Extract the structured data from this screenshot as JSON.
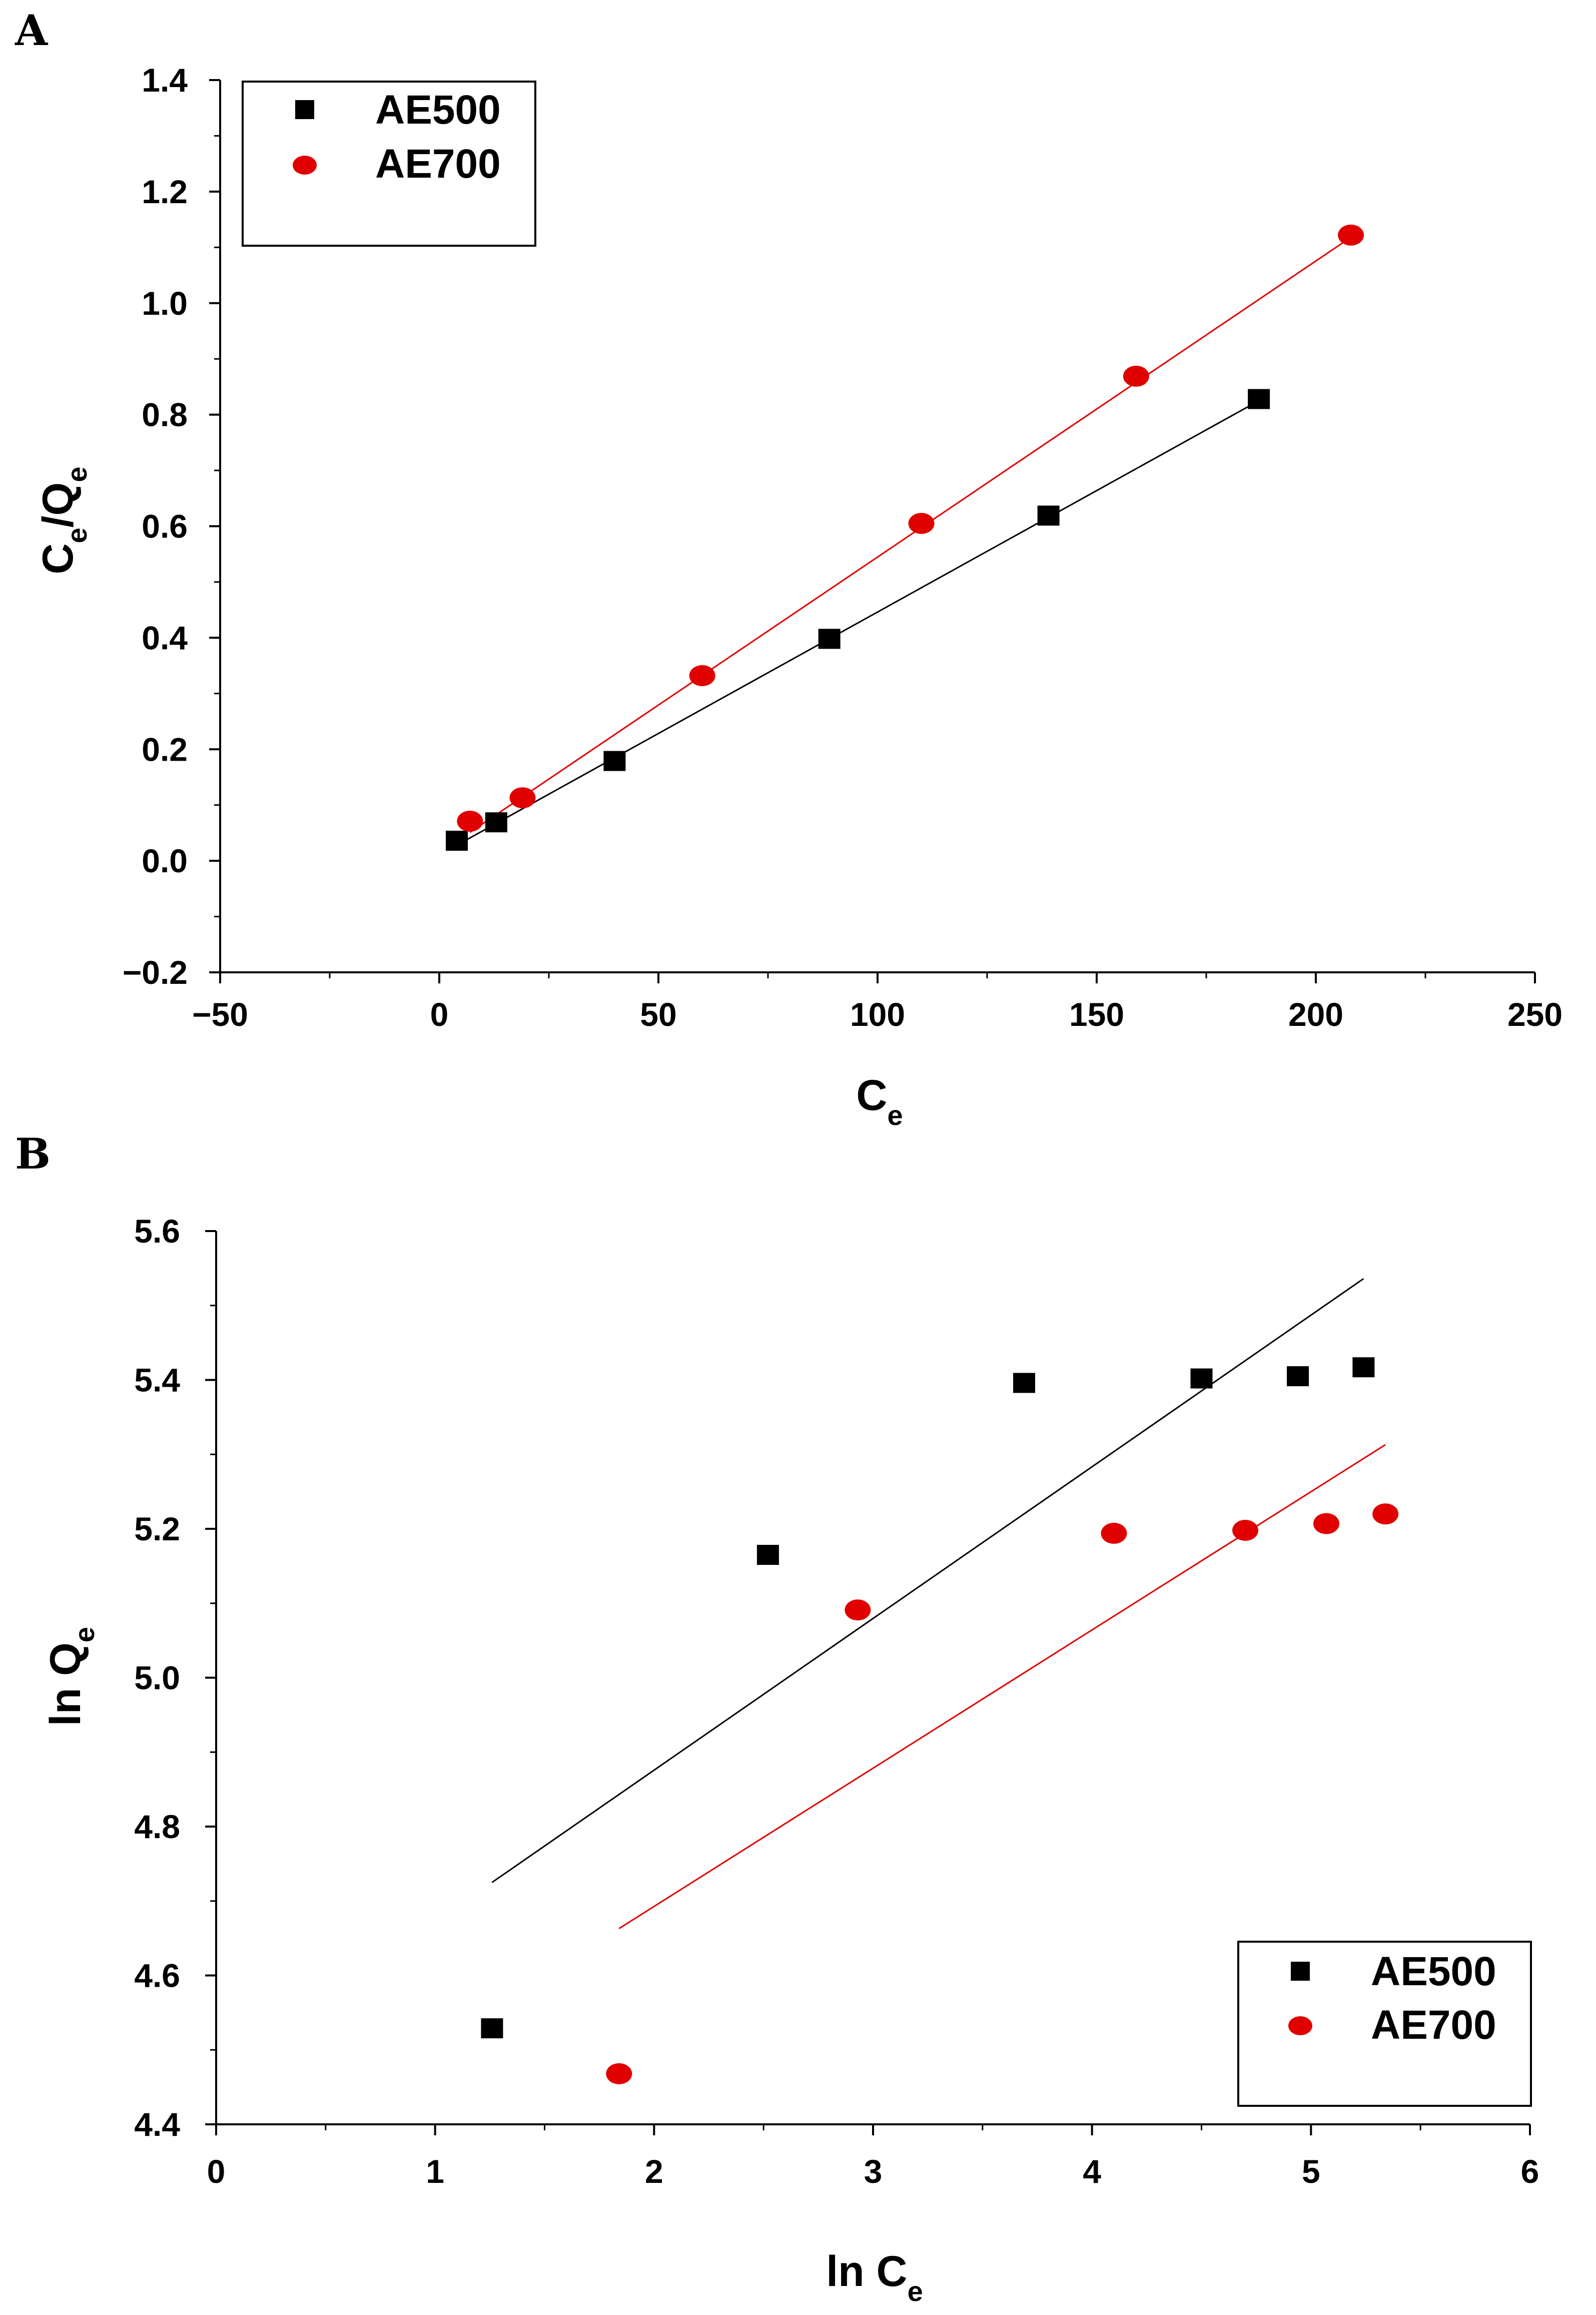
{
  "chart_data": [
    {
      "type": "scatter",
      "panel_label": "A",
      "xlabel": {
        "main": "C",
        "sub": "e"
      },
      "ylabel": {
        "main": "C",
        "sub": "e",
        "main2": "/Q",
        "sub2": "e"
      },
      "xlim": [
        -50,
        250
      ],
      "ylim": [
        -0.2,
        1.4
      ],
      "xticks": [
        -50,
        0,
        50,
        100,
        150,
        200,
        250
      ],
      "yticks": [
        -0.2,
        0.0,
        0.2,
        0.4,
        0.6,
        0.8,
        1.0,
        1.2,
        1.4
      ],
      "xtick_labels": [
        "−50",
        "0",
        "50",
        "100",
        "150",
        "200",
        "250"
      ],
      "ytick_labels": [
        "−0.2",
        "0.0",
        "0.2",
        "0.4",
        "0.6",
        "0.8",
        "1.0",
        "1.2",
        "1.4"
      ],
      "legend": {
        "position": "top-left",
        "entries": [
          "AE500",
          "AE700"
        ]
      },
      "series": [
        {
          "name": "AE500",
          "marker": "square",
          "color": "#000000",
          "x": [
            4,
            13,
            40,
            89,
            139,
            187
          ],
          "y": [
            0.036,
            0.069,
            0.179,
            0.398,
            0.619,
            0.828
          ],
          "fit": {
            "x": [
              4,
              187
            ],
            "y": [
              0.028,
              0.825
            ]
          }
        },
        {
          "name": "AE700",
          "marker": "circle",
          "color": "#e00000",
          "x": [
            7,
            19,
            60,
            110,
            159,
            208
          ],
          "y": [
            0.071,
            0.113,
            0.332,
            0.605,
            0.869,
            1.122
          ],
          "fit": {
            "x": [
              7,
              208
            ],
            "y": [
              0.051,
              1.118
            ]
          }
        }
      ]
    },
    {
      "type": "scatter",
      "panel_label": "B",
      "xlabel": {
        "main": "ln C",
        "sub": "e"
      },
      "ylabel": {
        "main": "ln Q",
        "sub": "e"
      },
      "xlim": [
        0,
        6
      ],
      "ylim": [
        4.4,
        5.6
      ],
      "xticks": [
        0,
        1,
        2,
        3,
        4,
        5,
        6
      ],
      "yticks": [
        4.4,
        4.6,
        4.8,
        5.0,
        5.2,
        5.4,
        5.6
      ],
      "xtick_labels": [
        "0",
        "1",
        "2",
        "3",
        "4",
        "5",
        "6"
      ],
      "ytick_labels": [
        "4.4",
        "4.6",
        "4.8",
        "5.0",
        "5.2",
        "5.4",
        "5.6"
      ],
      "legend": {
        "position": "bottom-right",
        "entries": [
          "AE500",
          "AE700"
        ]
      },
      "series": [
        {
          "name": "AE500",
          "marker": "square",
          "color": "#000000",
          "x": [
            1.26,
            2.52,
            3.69,
            4.5,
            4.94,
            5.24
          ],
          "y": [
            4.529,
            5.165,
            5.396,
            5.402,
            5.405,
            5.417
          ],
          "fit": {
            "x": [
              1.26,
              5.24
            ],
            "y": [
              4.725,
              5.536
            ]
          }
        },
        {
          "name": "AE700",
          "marker": "circle",
          "color": "#e00000",
          "x": [
            1.84,
            2.93,
            4.1,
            4.7,
            5.07,
            5.34
          ],
          "y": [
            4.468,
            5.091,
            5.194,
            5.198,
            5.207,
            5.22
          ],
          "fit": {
            "x": [
              1.84,
              5.34
            ],
            "y": [
              4.663,
              5.313
            ]
          }
        }
      ]
    }
  ]
}
